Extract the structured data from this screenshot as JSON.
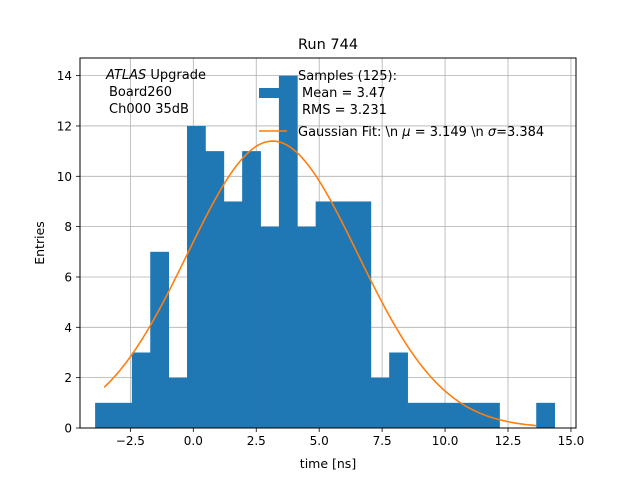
{
  "chart_data": {
    "type": "bar",
    "title": "Run 744",
    "xlabel": "time [ns]",
    "ylabel": "Entries",
    "xlim": [
      -4.5,
      15.2
    ],
    "ylim": [
      0,
      14.7
    ],
    "xticks": [
      -2.5,
      0.0,
      2.5,
      5.0,
      7.5,
      10.0,
      12.5,
      15.0
    ],
    "xtick_labels": [
      "−2.5",
      "0.0",
      "2.5",
      "5.0",
      "7.5",
      "10.0",
      "12.5",
      "15.0"
    ],
    "yticks": [
      0,
      2,
      4,
      6,
      8,
      10,
      12,
      14
    ],
    "ytick_labels": [
      "0",
      "2",
      "4",
      "6",
      "8",
      "10",
      "12",
      "14"
    ],
    "grid": true,
    "histogram": {
      "bin_edges": [
        -3.9,
        -3.17,
        -2.44,
        -1.71,
        -0.98,
        -0.25,
        0.48,
        1.21,
        1.94,
        2.67,
        3.4,
        4.13,
        4.86,
        5.59,
        6.32,
        7.05,
        7.78,
        8.51,
        9.24,
        9.97,
        10.7,
        11.43,
        12.16,
        12.89,
        13.62,
        14.35
      ],
      "counts": [
        1,
        1,
        3,
        7,
        2,
        12,
        11,
        9,
        11,
        8,
        14,
        8,
        9,
        9,
        9,
        2,
        3,
        1,
        1,
        1,
        1,
        1,
        0,
        0,
        1
      ],
      "color": "#1f77b4"
    },
    "fit": {
      "label": "Gaussian Fit: \\n $\\mu$ = 3.149 \\n $\\sigma$=3.384",
      "mu": 3.149,
      "sigma": 3.384,
      "amplitude": 11.4,
      "x_range": [
        -3.54,
        13.62
      ],
      "color": "#ff7f0e"
    },
    "annotation": {
      "line1_italic": "ATLAS",
      "line1_rest": " Upgrade",
      "line2": "Board260",
      "line3": "Ch000 35dB"
    },
    "legend": {
      "position": "top-right",
      "samples_title": "Samples (125):",
      "samples_mean": "Mean = 3.47",
      "samples_rms": "RMS = 3.231",
      "fit_label_prefix": "Gaussian Fit: \\n ",
      "fit_mu_symbol": "μ",
      "fit_label_middle": " = 3.149 \\n ",
      "fit_sigma_symbol": "σ",
      "fit_label_suffix": "=3.384"
    }
  }
}
